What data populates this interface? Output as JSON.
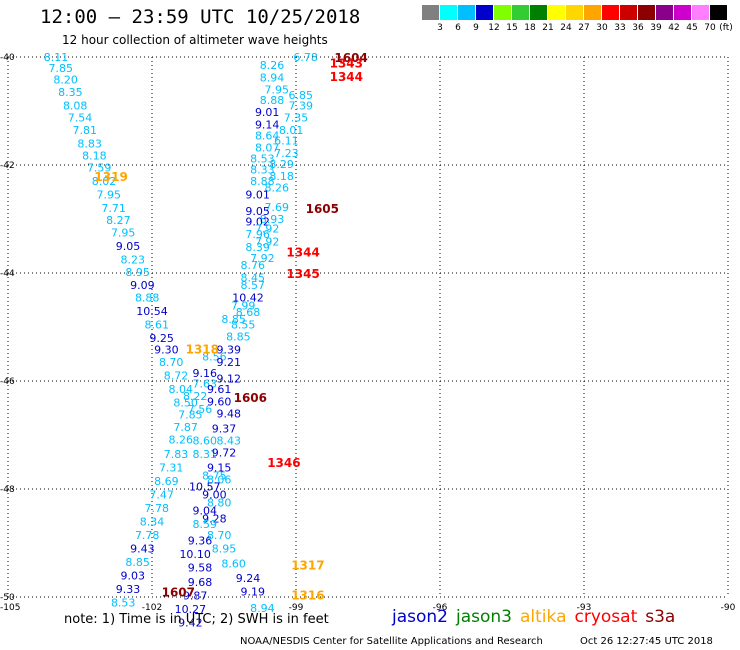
{
  "header": {
    "title": "12:00 — 23:59 UTC 10/25/2018",
    "subtitle": "12 hour collection of altimeter wave heights"
  },
  "colorbar": {
    "unit": "(ft)",
    "swatches": [
      "#808080",
      "#00ffff",
      "#00bfff",
      "#0000cd",
      "#7fff00",
      "#32cd32",
      "#008000",
      "#ffff00",
      "#ffd700",
      "#ffa500",
      "#ff0000",
      "#cd0000",
      "#8b0000",
      "#8b008b",
      "#cd00cd",
      "#ff7fff",
      "#000000"
    ],
    "labels": [
      "3",
      "6",
      "9",
      "12",
      "15",
      "18",
      "21",
      "24",
      "27",
      "30",
      "33",
      "36",
      "39",
      "42",
      "45",
      "70"
    ]
  },
  "axes": {
    "lon_ticks": [
      "-105",
      "-102",
      "-99",
      "-96",
      "-93",
      "-90"
    ],
    "lat_ticks": [
      "-40",
      "-42",
      "-44",
      "-46",
      "-48",
      "-50"
    ],
    "lon_range": [
      -105,
      -90
    ],
    "lat_range": [
      -40,
      -50
    ]
  },
  "note": "note: 1) Time is in UTC; 2) SWH is in feet",
  "legend": [
    {
      "name": "jason2",
      "color": "#0000cd"
    },
    {
      "name": "jason3",
      "color": "#008000"
    },
    {
      "name": "altika",
      "color": "#ffa500"
    },
    {
      "name": "cryosat",
      "color": "#ff0000"
    },
    {
      "name": "s3a",
      "color": "#8b0000"
    }
  ],
  "credit": "NOAA/NESDIS Center for Satellite Applications and Research",
  "timestamp": "Oct 26 12:27:45 UTC 2018",
  "track_times": [
    {
      "label": "1604",
      "lon": -98.2,
      "lat": -40.0,
      "color": "#8b0000"
    },
    {
      "label": "1343",
      "lon": -98.3,
      "lat": -40.1,
      "color": "#ff0000"
    },
    {
      "label": "1344",
      "lon": -98.3,
      "lat": -40.35,
      "color": "#ff0000"
    },
    {
      "label": "1319",
      "lon": -103.2,
      "lat": -42.2,
      "color": "#ffa500"
    },
    {
      "label": "1605",
      "lon": -98.8,
      "lat": -42.8,
      "color": "#8b0000"
    },
    {
      "label": "1344",
      "lon": -99.2,
      "lat": -43.6,
      "color": "#ff0000"
    },
    {
      "label": "1345",
      "lon": -99.2,
      "lat": -44.0,
      "color": "#ff0000"
    },
    {
      "label": "1318",
      "lon": -101.3,
      "lat": -45.4,
      "color": "#ffa500"
    },
    {
      "label": "1606",
      "lon": -100.3,
      "lat": -46.3,
      "color": "#8b0000"
    },
    {
      "label": "1346",
      "lon": -99.6,
      "lat": -47.5,
      "color": "#ff0000"
    },
    {
      "label": "1317",
      "lon": -99.1,
      "lat": -49.4,
      "color": "#ffa500"
    },
    {
      "label": "1607",
      "lon": -101.8,
      "lat": -49.9,
      "color": "#8b0000"
    },
    {
      "label": "1316",
      "lon": -99.1,
      "lat": -49.95,
      "color": "#ffa500"
    }
  ],
  "swh_points": [
    {
      "v": "8.11",
      "lon": -104.0,
      "lat": -40.0,
      "c": "#00bfff"
    },
    {
      "v": "7.85",
      "lon": -103.9,
      "lat": -40.2,
      "c": "#00bfff"
    },
    {
      "v": "8.20",
      "lon": -103.8,
      "lat": -40.42,
      "c": "#00bfff"
    },
    {
      "v": "8.35",
      "lon": -103.7,
      "lat": -40.65,
      "c": "#00bfff"
    },
    {
      "v": "8.08",
      "lon": -103.6,
      "lat": -40.9,
      "c": "#00bfff"
    },
    {
      "v": "7.54",
      "lon": -103.5,
      "lat": -41.12,
      "c": "#00bfff"
    },
    {
      "v": "7.81",
      "lon": -103.4,
      "lat": -41.35,
      "c": "#00bfff"
    },
    {
      "v": "8.83",
      "lon": -103.3,
      "lat": -41.6,
      "c": "#00bfff"
    },
    {
      "v": "8.18",
      "lon": -103.2,
      "lat": -41.82,
      "c": "#00bfff"
    },
    {
      "v": "7.59",
      "lon": -103.1,
      "lat": -42.05,
      "c": "#00bfff"
    },
    {
      "v": "8.02",
      "lon": -103.0,
      "lat": -42.3,
      "c": "#00bfff"
    },
    {
      "v": "7.95",
      "lon": -102.9,
      "lat": -42.55,
      "c": "#00bfff"
    },
    {
      "v": "7.71",
      "lon": -102.8,
      "lat": -42.8,
      "c": "#00bfff"
    },
    {
      "v": "8.27",
      "lon": -102.7,
      "lat": -43.02,
      "c": "#00bfff"
    },
    {
      "v": "7.95",
      "lon": -102.6,
      "lat": -43.25,
      "c": "#00bfff"
    },
    {
      "v": "9.05",
      "lon": -102.5,
      "lat": -43.5,
      "c": "#0000cd"
    },
    {
      "v": "8.23",
      "lon": -102.4,
      "lat": -43.75,
      "c": "#00bfff"
    },
    {
      "v": "8.95",
      "lon": -102.3,
      "lat": -43.98,
      "c": "#00bfff"
    },
    {
      "v": "9.09",
      "lon": -102.2,
      "lat": -44.22,
      "c": "#0000cd"
    },
    {
      "v": "8.88",
      "lon": -102.1,
      "lat": -44.45,
      "c": "#00bfff"
    },
    {
      "v": "10.54",
      "lon": -102.0,
      "lat": -44.7,
      "c": "#0000cd"
    },
    {
      "v": "8.61",
      "lon": -101.9,
      "lat": -44.95,
      "c": "#00bfff"
    },
    {
      "v": "9.25",
      "lon": -101.8,
      "lat": -45.2,
      "c": "#0000cd"
    },
    {
      "v": "9.30",
      "lon": -101.7,
      "lat": -45.42,
      "c": "#0000cd"
    },
    {
      "v": "8.70",
      "lon": -101.6,
      "lat": -45.65,
      "c": "#00bfff"
    },
    {
      "v": "8.72",
      "lon": -101.5,
      "lat": -45.9,
      "c": "#00bfff"
    },
    {
      "v": "8.04",
      "lon": -101.4,
      "lat": -46.15,
      "c": "#00bfff"
    },
    {
      "v": "8.50",
      "lon": -101.3,
      "lat": -46.4,
      "c": "#00bfff"
    },
    {
      "v": "7.85",
      "lon": -101.2,
      "lat": -46.62,
      "c": "#00bfff"
    },
    {
      "v": "7.87",
      "lon": -101.3,
      "lat": -46.85,
      "c": "#00bfff"
    },
    {
      "v": "8.26",
      "lon": -101.4,
      "lat": -47.08,
      "c": "#00bfff"
    },
    {
      "v": "7.83",
      "lon": -101.5,
      "lat": -47.35,
      "c": "#00bfff"
    },
    {
      "v": "7.31",
      "lon": -101.6,
      "lat": -47.6,
      "c": "#00bfff"
    },
    {
      "v": "8.69",
      "lon": -101.7,
      "lat": -47.85,
      "c": "#00bfff"
    },
    {
      "v": "7.47",
      "lon": -101.8,
      "lat": -48.1,
      "c": "#00bfff"
    },
    {
      "v": "7.78",
      "lon": -101.9,
      "lat": -48.35,
      "c": "#00bfff"
    },
    {
      "v": "8.34",
      "lon": -102.0,
      "lat": -48.6,
      "c": "#00bfff"
    },
    {
      "v": "7.78",
      "lon": -102.1,
      "lat": -48.85,
      "c": "#00bfff"
    },
    {
      "v": "9.43",
      "lon": -102.2,
      "lat": -49.1,
      "c": "#0000cd"
    },
    {
      "v": "8.85",
      "lon": -102.3,
      "lat": -49.35,
      "c": "#00bfff"
    },
    {
      "v": "9.03",
      "lon": -102.4,
      "lat": -49.6,
      "c": "#0000cd"
    },
    {
      "v": "9.33",
      "lon": -102.5,
      "lat": -49.85,
      "c": "#0000cd"
    },
    {
      "v": "8.53",
      "lon": -102.6,
      "lat": -50.1,
      "c": "#00bfff"
    },
    {
      "v": "6.78",
      "lon": -98.8,
      "lat": -40.0,
      "c": "#00bfff"
    },
    {
      "v": "8.26",
      "lon": -99.5,
      "lat": -40.15,
      "c": "#00bfff"
    },
    {
      "v": "8.94",
      "lon": -99.5,
      "lat": -40.38,
      "c": "#00bfff"
    },
    {
      "v": "7.95",
      "lon": -99.4,
      "lat": -40.6,
      "c": "#00bfff"
    },
    {
      "v": "6.85",
      "lon": -98.9,
      "lat": -40.7,
      "c": "#00bfff"
    },
    {
      "v": "8.88",
      "lon": -99.5,
      "lat": -40.8,
      "c": "#00bfff"
    },
    {
      "v": "7.39",
      "lon": -98.9,
      "lat": -40.9,
      "c": "#00bfff"
    },
    {
      "v": "9.01",
      "lon": -99.6,
      "lat": -41.02,
      "c": "#0000cd"
    },
    {
      "v": "7.35",
      "lon": -99.0,
      "lat": -41.12,
      "c": "#00bfff"
    },
    {
      "v": "9.14",
      "lon": -99.6,
      "lat": -41.25,
      "c": "#0000cd"
    },
    {
      "v": "8.01",
      "lon": -99.1,
      "lat": -41.35,
      "c": "#00bfff"
    },
    {
      "v": "8.64",
      "lon": -99.6,
      "lat": -41.45,
      "c": "#00bfff"
    },
    {
      "v": "6.11",
      "lon": -99.2,
      "lat": -41.55,
      "c": "#00bfff"
    },
    {
      "v": "8.07",
      "lon": -99.6,
      "lat": -41.68,
      "c": "#00bfff"
    },
    {
      "v": "7.23",
      "lon": -99.2,
      "lat": -41.78,
      "c": "#00bfff"
    },
    {
      "v": "8.53",
      "lon": -99.7,
      "lat": -41.88,
      "c": "#00bfff"
    },
    {
      "v": "8.29",
      "lon": -99.3,
      "lat": -41.98,
      "c": "#00bfff"
    },
    {
      "v": "8.33",
      "lon": -99.7,
      "lat": -42.08,
      "c": "#00bfff"
    },
    {
      "v": "8.18",
      "lon": -99.3,
      "lat": -42.2,
      "c": "#00bfff"
    },
    {
      "v": "8.88",
      "lon": -99.7,
      "lat": -42.3,
      "c": "#00bfff"
    },
    {
      "v": "8.26",
      "lon": -99.4,
      "lat": -42.42,
      "c": "#00bfff"
    },
    {
      "v": "9.01",
      "lon": -99.8,
      "lat": -42.55,
      "c": "#0000cd"
    },
    {
      "v": "7.69",
      "lon": -99.4,
      "lat": -42.78,
      "c": "#00bfff"
    },
    {
      "v": "9.05",
      "lon": -99.8,
      "lat": -42.85,
      "c": "#0000cd"
    },
    {
      "v": "8.93",
      "lon": -99.5,
      "lat": -43.0,
      "c": "#00bfff"
    },
    {
      "v": "9.02",
      "lon": -99.8,
      "lat": -43.05,
      "c": "#0000cd"
    },
    {
      "v": "7.92",
      "lon": -99.6,
      "lat": -43.18,
      "c": "#00bfff"
    },
    {
      "v": "7.96",
      "lon": -99.8,
      "lat": -43.28,
      "c": "#00bfff"
    },
    {
      "v": "7.92",
      "lon": -99.6,
      "lat": -43.42,
      "c": "#00bfff"
    },
    {
      "v": "8.39",
      "lon": -99.8,
      "lat": -43.52,
      "c": "#00bfff"
    },
    {
      "v": "7.92",
      "lon": -99.7,
      "lat": -43.72,
      "c": "#00bfff"
    },
    {
      "v": "8.76",
      "lon": -99.9,
      "lat": -43.85,
      "c": "#00bfff"
    },
    {
      "v": "8.45",
      "lon": -99.9,
      "lat": -44.08,
      "c": "#00bfff"
    },
    {
      "v": "8.57",
      "lon": -99.9,
      "lat": -44.22,
      "c": "#00bfff"
    },
    {
      "v": "10.42",
      "lon": -100.0,
      "lat": -44.45,
      "c": "#0000cd"
    },
    {
      "v": "7.99",
      "lon": -100.1,
      "lat": -44.6,
      "c": "#00bfff"
    },
    {
      "v": "8.68",
      "lon": -100.0,
      "lat": -44.72,
      "c": "#00bfff"
    },
    {
      "v": "8.85",
      "lon": -100.3,
      "lat": -44.85,
      "c": "#00bfff"
    },
    {
      "v": "8.55",
      "lon": -100.1,
      "lat": -44.95,
      "c": "#00bfff"
    },
    {
      "v": "8.85",
      "lon": -100.2,
      "lat": -45.18,
      "c": "#00bfff"
    },
    {
      "v": "9.39",
      "lon": -100.4,
      "lat": -45.42,
      "c": "#0000cd"
    },
    {
      "v": "8.56",
      "lon": -100.7,
      "lat": -45.55,
      "c": "#00bfff"
    },
    {
      "v": "9.21",
      "lon": -100.4,
      "lat": -45.65,
      "c": "#0000cd"
    },
    {
      "v": "9.16",
      "lon": -100.9,
      "lat": -45.85,
      "c": "#0000cd"
    },
    {
      "v": "9.12",
      "lon": -100.4,
      "lat": -45.95,
      "c": "#0000cd"
    },
    {
      "v": "7.63",
      "lon": -100.9,
      "lat": -46.05,
      "c": "#00bfff"
    },
    {
      "v": "9.61",
      "lon": -100.6,
      "lat": -46.15,
      "c": "#0000cd"
    },
    {
      "v": "8.22",
      "lon": -101.1,
      "lat": -46.28,
      "c": "#00bfff"
    },
    {
      "v": "9.60",
      "lon": -100.6,
      "lat": -46.38,
      "c": "#0000cd"
    },
    {
      "v": "7.56",
      "lon": -101.0,
      "lat": -46.52,
      "c": "#00bfff"
    },
    {
      "v": "9.48",
      "lon": -100.4,
      "lat": -46.6,
      "c": "#0000cd"
    },
    {
      "v": "9.37",
      "lon": -100.5,
      "lat": -46.88,
      "c": "#0000cd"
    },
    {
      "v": "8.60",
      "lon": -100.9,
      "lat": -47.1,
      "c": "#00bfff"
    },
    {
      "v": "8.43",
      "lon": -100.4,
      "lat": -47.1,
      "c": "#00bfff"
    },
    {
      "v": "8.31",
      "lon": -100.9,
      "lat": -47.35,
      "c": "#00bfff"
    },
    {
      "v": "9.72",
      "lon": -100.5,
      "lat": -47.32,
      "c": "#0000cd"
    },
    {
      "v": "9.15",
      "lon": -100.6,
      "lat": -47.6,
      "c": "#0000cd"
    },
    {
      "v": "8.75",
      "lon": -100.7,
      "lat": -47.75,
      "c": "#00bfff"
    },
    {
      "v": "8.06",
      "lon": -100.6,
      "lat": -47.82,
      "c": "#00bfff"
    },
    {
      "v": "10.57",
      "lon": -100.9,
      "lat": -47.95,
      "c": "#0000cd"
    },
    {
      "v": "9.00",
      "lon": -100.7,
      "lat": -48.1,
      "c": "#0000cd"
    },
    {
      "v": "8.80",
      "lon": -100.6,
      "lat": -48.25,
      "c": "#00bfff"
    },
    {
      "v": "9.04",
      "lon": -100.9,
      "lat": -48.4,
      "c": "#0000cd"
    },
    {
      "v": "9.28",
      "lon": -100.7,
      "lat": -48.55,
      "c": "#0000cd"
    },
    {
      "v": "8.59",
      "lon": -100.9,
      "lat": -48.65,
      "c": "#00bfff"
    },
    {
      "v": "8.70",
      "lon": -100.6,
      "lat": -48.85,
      "c": "#00bfff"
    },
    {
      "v": "9.36",
      "lon": -101.0,
      "lat": -48.95,
      "c": "#0000cd"
    },
    {
      "v": "8.95",
      "lon": -100.5,
      "lat": -49.1,
      "c": "#00bfff"
    },
    {
      "v": "10.10",
      "lon": -101.1,
      "lat": -49.2,
      "c": "#0000cd"
    },
    {
      "v": "8.60",
      "lon": -100.3,
      "lat": -49.38,
      "c": "#00bfff"
    },
    {
      "v": "9.58",
      "lon": -101.0,
      "lat": -49.45,
      "c": "#0000cd"
    },
    {
      "v": "9.24",
      "lon": -100.0,
      "lat": -49.65,
      "c": "#0000cd"
    },
    {
      "v": "9.68",
      "lon": -101.0,
      "lat": -49.72,
      "c": "#0000cd"
    },
    {
      "v": "9.19",
      "lon": -99.9,
      "lat": -49.9,
      "c": "#0000cd"
    },
    {
      "v": "9.87",
      "lon": -101.1,
      "lat": -49.97,
      "c": "#0000cd"
    },
    {
      "v": "8.94",
      "lon": -99.7,
      "lat": -50.2,
      "c": "#00bfff"
    },
    {
      "v": "10.27",
      "lon": -101.2,
      "lat": -50.22,
      "c": "#0000cd"
    },
    {
      "v": "9.42",
      "lon": -101.2,
      "lat": -50.47,
      "c": "#0000cd"
    }
  ]
}
